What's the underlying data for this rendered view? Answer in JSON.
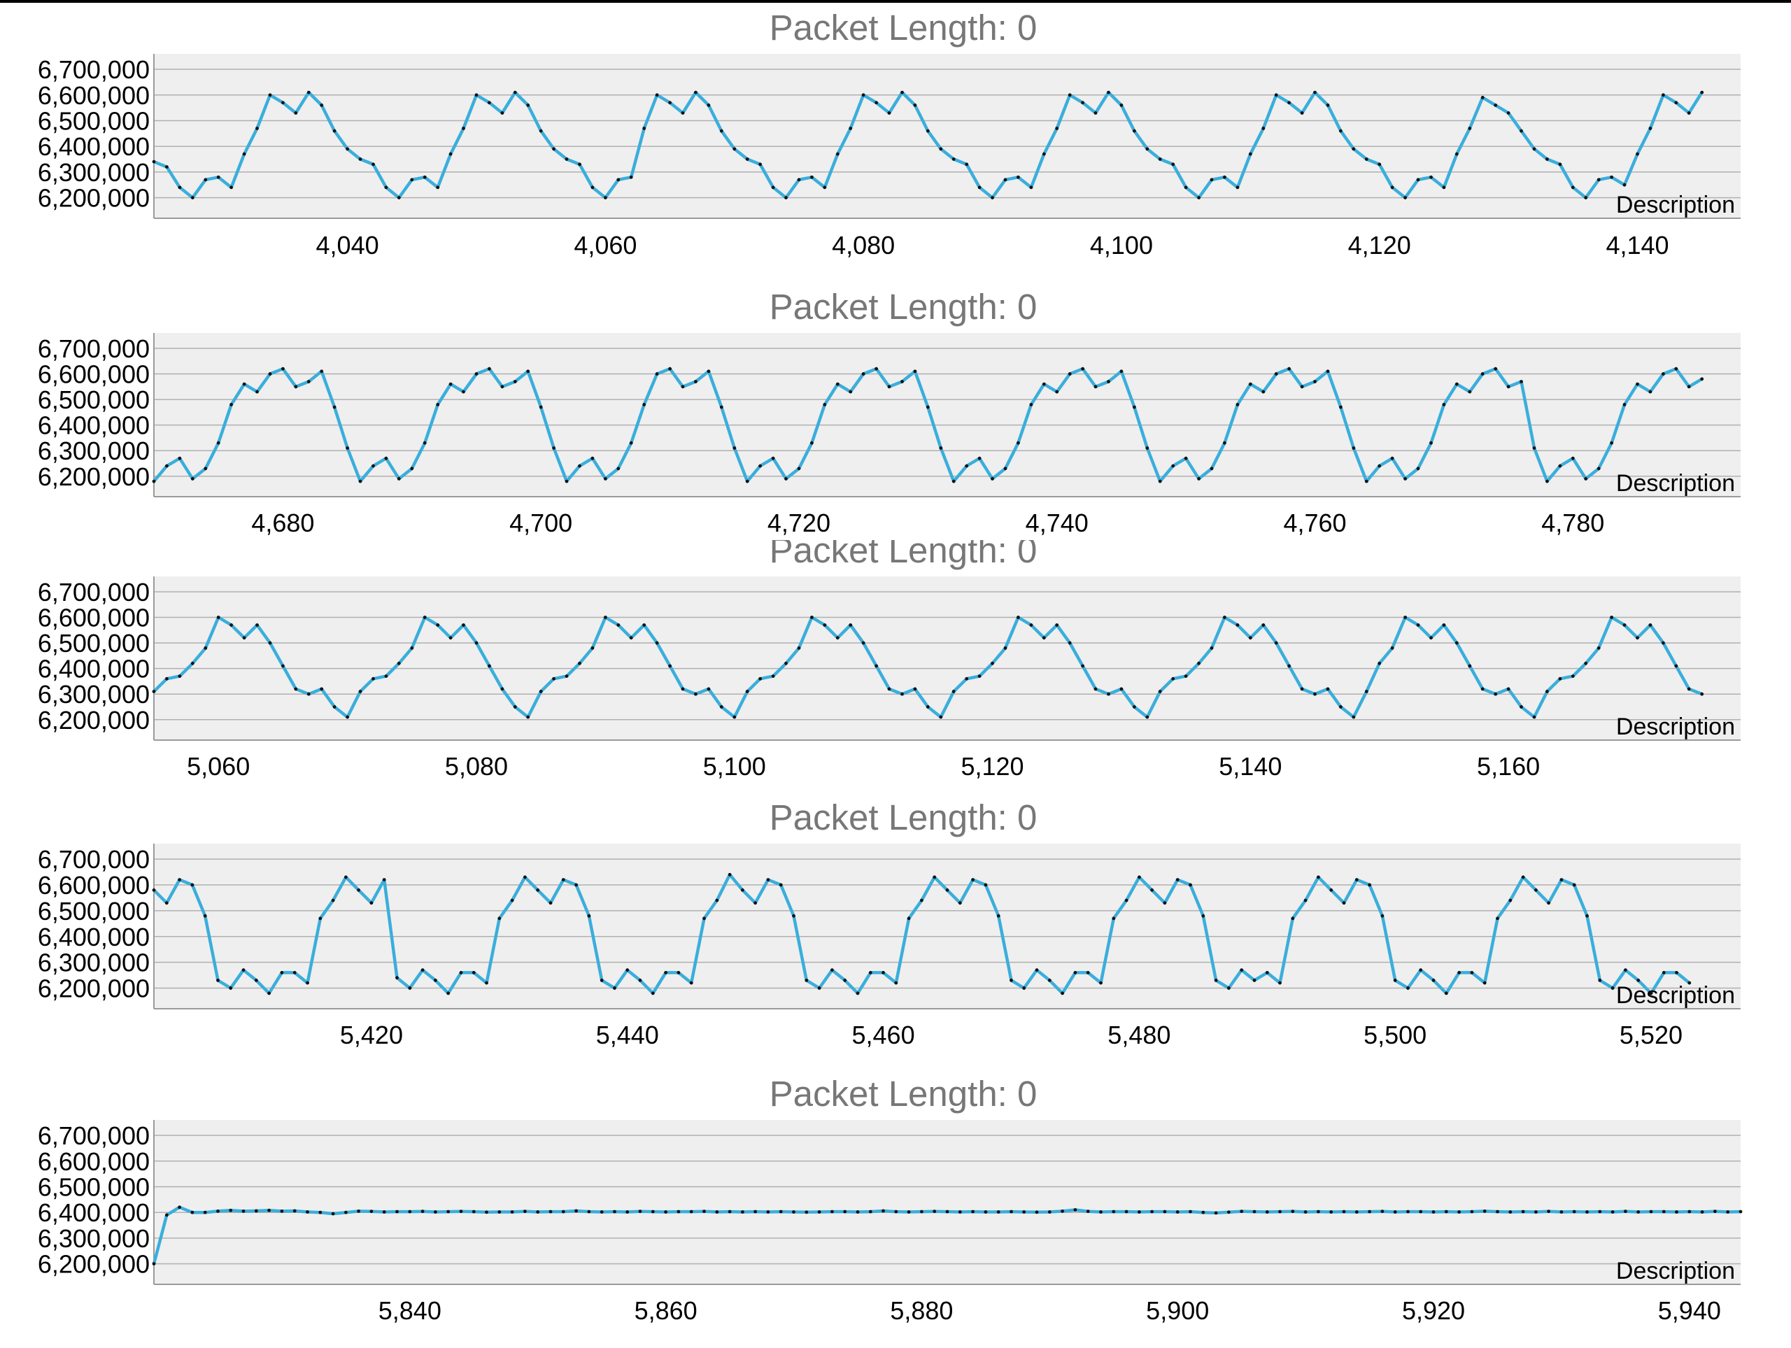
{
  "colors": {
    "line": "#3aaedc",
    "point": "#111111",
    "plot_bg": "#efefef",
    "grid": "#b0b0b0",
    "axis": "#9a9a9a",
    "title": "#777777"
  },
  "chart_data": [
    {
      "type": "line",
      "title": "Packet Length: 0",
      "description": "Description",
      "xlim": [
        4025,
        4148
      ],
      "ylim": [
        6120000,
        6760000
      ],
      "x_ticks": [
        4040,
        4060,
        4080,
        4100,
        4120,
        4140
      ],
      "x_tick_labels": [
        "4,040",
        "4,060",
        "4,080",
        "4,100",
        "4,120",
        "4,140"
      ],
      "y_ticks": [
        6200000,
        6300000,
        6400000,
        6500000,
        6600000,
        6700000
      ],
      "y_tick_labels": [
        "6,200,000",
        "6,300,000",
        "6,400,000",
        "6,500,000",
        "6,600,000",
        "6,700,000"
      ],
      "x_start": 4025,
      "x_step": 1,
      "values": [
        6340000,
        6320000,
        6240000,
        6200000,
        6270000,
        6280000,
        6240000,
        6370000,
        6470000,
        6600000,
        6570000,
        6530000,
        6610000,
        6560000,
        6460000,
        6390000,
        6350000,
        6330000,
        6240000,
        6200000,
        6270000,
        6280000,
        6240000,
        6370000,
        6470000,
        6600000,
        6570000,
        6530000,
        6610000,
        6560000,
        6460000,
        6390000,
        6350000,
        6330000,
        6240000,
        6200000,
        6270000,
        6280000,
        6470000,
        6600000,
        6570000,
        6530000,
        6610000,
        6560000,
        6460000,
        6390000,
        6350000,
        6330000,
        6240000,
        6200000,
        6270000,
        6280000,
        6240000,
        6370000,
        6470000,
        6600000,
        6570000,
        6530000,
        6610000,
        6560000,
        6460000,
        6390000,
        6350000,
        6330000,
        6240000,
        6200000,
        6270000,
        6280000,
        6240000,
        6370000,
        6470000,
        6600000,
        6570000,
        6530000,
        6610000,
        6560000,
        6460000,
        6390000,
        6350000,
        6330000,
        6240000,
        6200000,
        6270000,
        6280000,
        6240000,
        6370000,
        6470000,
        6600000,
        6570000,
        6530000,
        6610000,
        6560000,
        6460000,
        6390000,
        6350000,
        6330000,
        6240000,
        6200000,
        6270000,
        6280000,
        6240000,
        6370000,
        6470000,
        6590000,
        6560000,
        6530000,
        6460000,
        6390000,
        6350000,
        6330000,
        6240000,
        6200000,
        6270000,
        6280000,
        6250000,
        6370000,
        6470000,
        6600000,
        6570000,
        6530000,
        6610000
      ]
    },
    {
      "type": "line",
      "title": "Packet Length: 0",
      "description": "Description",
      "xlim": [
        4670,
        4793
      ],
      "ylim": [
        6120000,
        6760000
      ],
      "x_ticks": [
        4680,
        4700,
        4720,
        4740,
        4760,
        4780
      ],
      "x_tick_labels": [
        "4,680",
        "4,700",
        "4,720",
        "4,740",
        "4,760",
        "4,780"
      ],
      "y_ticks": [
        6200000,
        6300000,
        6400000,
        6500000,
        6600000,
        6700000
      ],
      "y_tick_labels": [
        "6,200,000",
        "6,300,000",
        "6,400,000",
        "6,500,000",
        "6,600,000",
        "6,700,000"
      ],
      "x_start": 4670,
      "x_step": 1,
      "values": [
        6180000,
        6240000,
        6270000,
        6190000,
        6230000,
        6330000,
        6480000,
        6560000,
        6530000,
        6600000,
        6620000,
        6550000,
        6570000,
        6610000,
        6470000,
        6310000,
        6180000,
        6240000,
        6270000,
        6190000,
        6230000,
        6330000,
        6480000,
        6560000,
        6530000,
        6600000,
        6620000,
        6550000,
        6570000,
        6610000,
        6470000,
        6310000,
        6180000,
        6240000,
        6270000,
        6190000,
        6230000,
        6330000,
        6480000,
        6600000,
        6620000,
        6550000,
        6570000,
        6610000,
        6470000,
        6310000,
        6180000,
        6240000,
        6270000,
        6190000,
        6230000,
        6330000,
        6480000,
        6560000,
        6530000,
        6600000,
        6620000,
        6550000,
        6570000,
        6610000,
        6470000,
        6310000,
        6180000,
        6240000,
        6270000,
        6190000,
        6230000,
        6330000,
        6480000,
        6560000,
        6530000,
        6600000,
        6620000,
        6550000,
        6570000,
        6610000,
        6470000,
        6310000,
        6180000,
        6240000,
        6270000,
        6190000,
        6230000,
        6330000,
        6480000,
        6560000,
        6530000,
        6600000,
        6620000,
        6550000,
        6570000,
        6610000,
        6470000,
        6310000,
        6180000,
        6240000,
        6270000,
        6190000,
        6230000,
        6330000,
        6480000,
        6560000,
        6530000,
        6600000,
        6620000,
        6550000,
        6570000,
        6310000,
        6180000,
        6240000,
        6270000,
        6190000,
        6230000,
        6330000,
        6480000,
        6560000,
        6530000,
        6600000,
        6620000,
        6550000,
        6580000
      ]
    },
    {
      "type": "line",
      "title": "Packet Length: 0",
      "description": "Description",
      "xlim": [
        5055,
        5178
      ],
      "ylim": [
        6120000,
        6760000
      ],
      "x_ticks": [
        5060,
        5080,
        5100,
        5120,
        5140,
        5160
      ],
      "x_tick_labels": [
        "5,060",
        "5,080",
        "5,100",
        "5,120",
        "5,140",
        "5,160"
      ],
      "y_ticks": [
        6200000,
        6300000,
        6400000,
        6500000,
        6600000,
        6700000
      ],
      "y_tick_labels": [
        "6,200,000",
        "6,300,000",
        "6,400,000",
        "6,500,000",
        "6,600,000",
        "6,700,000"
      ],
      "x_start": 5055,
      "x_step": 1,
      "values": [
        6310000,
        6360000,
        6370000,
        6420000,
        6480000,
        6600000,
        6570000,
        6520000,
        6570000,
        6500000,
        6410000,
        6320000,
        6300000,
        6320000,
        6250000,
        6210000,
        6310000,
        6360000,
        6370000,
        6420000,
        6480000,
        6600000,
        6570000,
        6520000,
        6570000,
        6500000,
        6410000,
        6320000,
        6250000,
        6210000,
        6310000,
        6360000,
        6370000,
        6420000,
        6480000,
        6600000,
        6570000,
        6520000,
        6570000,
        6500000,
        6410000,
        6320000,
        6300000,
        6320000,
        6250000,
        6210000,
        6310000,
        6360000,
        6370000,
        6420000,
        6480000,
        6600000,
        6570000,
        6520000,
        6570000,
        6500000,
        6410000,
        6320000,
        6300000,
        6320000,
        6250000,
        6210000,
        6310000,
        6360000,
        6370000,
        6420000,
        6480000,
        6600000,
        6570000,
        6520000,
        6570000,
        6500000,
        6410000,
        6320000,
        6300000,
        6320000,
        6250000,
        6210000,
        6310000,
        6360000,
        6370000,
        6420000,
        6480000,
        6600000,
        6570000,
        6520000,
        6570000,
        6500000,
        6410000,
        6320000,
        6300000,
        6320000,
        6250000,
        6210000,
        6310000,
        6420000,
        6480000,
        6600000,
        6570000,
        6520000,
        6570000,
        6500000,
        6410000,
        6320000,
        6300000,
        6320000,
        6250000,
        6210000,
        6310000,
        6360000,
        6370000,
        6420000,
        6480000,
        6600000,
        6570000,
        6520000,
        6570000,
        6500000,
        6410000,
        6320000,
        6300000
      ]
    },
    {
      "type": "line",
      "title": "Packet Length: 0",
      "description": "Description",
      "xlim": [
        5403,
        5527
      ],
      "ylim": [
        6120000,
        6760000
      ],
      "x_ticks": [
        5420,
        5440,
        5460,
        5480,
        5500,
        5520
      ],
      "x_tick_labels": [
        "5,420",
        "5,440",
        "5,460",
        "5,480",
        "5,500",
        "5,520"
      ],
      "y_ticks": [
        6200000,
        6300000,
        6400000,
        6500000,
        6600000,
        6700000
      ],
      "y_tick_labels": [
        "6,200,000",
        "6,300,000",
        "6,400,000",
        "6,500,000",
        "6,600,000",
        "6,700,000"
      ],
      "x_start": 5403,
      "x_step": 1,
      "values": [
        6580000,
        6530000,
        6620000,
        6600000,
        6480000,
        6230000,
        6200000,
        6270000,
        6230000,
        6180000,
        6260000,
        6260000,
        6220000,
        6470000,
        6540000,
        6630000,
        6580000,
        6530000,
        6620000,
        6240000,
        6200000,
        6270000,
        6230000,
        6180000,
        6260000,
        6260000,
        6220000,
        6470000,
        6540000,
        6630000,
        6580000,
        6530000,
        6620000,
        6600000,
        6480000,
        6230000,
        6200000,
        6270000,
        6230000,
        6180000,
        6260000,
        6260000,
        6220000,
        6470000,
        6540000,
        6640000,
        6580000,
        6530000,
        6620000,
        6600000,
        6480000,
        6230000,
        6200000,
        6270000,
        6230000,
        6180000,
        6260000,
        6260000,
        6220000,
        6470000,
        6540000,
        6630000,
        6580000,
        6530000,
        6620000,
        6600000,
        6480000,
        6230000,
        6200000,
        6270000,
        6230000,
        6180000,
        6260000,
        6260000,
        6220000,
        6470000,
        6540000,
        6630000,
        6580000,
        6530000,
        6620000,
        6600000,
        6480000,
        6230000,
        6200000,
        6270000,
        6230000,
        6260000,
        6220000,
        6470000,
        6540000,
        6630000,
        6580000,
        6530000,
        6620000,
        6600000,
        6480000,
        6230000,
        6200000,
        6270000,
        6230000,
        6180000,
        6260000,
        6260000,
        6220000,
        6470000,
        6540000,
        6630000,
        6580000,
        6530000,
        6620000,
        6600000,
        6480000,
        6230000,
        6200000,
        6270000,
        6230000,
        6180000,
        6260000,
        6260000,
        6220000
      ]
    },
    {
      "type": "line",
      "title": "Packet Length: 0",
      "description": "Description",
      "xlim": [
        5820,
        5944
      ],
      "ylim": [
        6120000,
        6760000
      ],
      "x_ticks": [
        5840,
        5860,
        5880,
        5900,
        5920,
        5940
      ],
      "x_tick_labels": [
        "5,840",
        "5,860",
        "5,880",
        "5,900",
        "5,920",
        "5,940"
      ],
      "y_ticks": [
        6200000,
        6300000,
        6400000,
        6500000,
        6600000,
        6700000
      ],
      "y_tick_labels": [
        "6,200,000",
        "6,300,000",
        "6,400,000",
        "6,500,000",
        "6,600,000",
        "6,700,000"
      ],
      "x_start": 5820,
      "x_step": 1,
      "values": [
        6200000,
        6390000,
        6420000,
        6400000,
        6400000,
        6405000,
        6408000,
        6405000,
        6406000,
        6408000,
        6405000,
        6406000,
        6402000,
        6400000,
        6395000,
        6400000,
        6405000,
        6404000,
        6402000,
        6403000,
        6403000,
        6404000,
        6402000,
        6403000,
        6404000,
        6403000,
        6401000,
        6402000,
        6402000,
        6404000,
        6402000,
        6403000,
        6403000,
        6406000,
        6403000,
        6402000,
        6403000,
        6402000,
        6404000,
        6403000,
        6402000,
        6403000,
        6403000,
        6404000,
        6402000,
        6403000,
        6402000,
        6403000,
        6402000,
        6403000,
        6402000,
        6401000,
        6402000,
        6403000,
        6403000,
        6402000,
        6403000,
        6406000,
        6403000,
        6402000,
        6403000,
        6404000,
        6403000,
        6402000,
        6403000,
        6402000,
        6402000,
        6403000,
        6402000,
        6401000,
        6402000,
        6405000,
        6410000,
        6404000,
        6402000,
        6403000,
        6403000,
        6402000,
        6403000,
        6403000,
        6402000,
        6403000,
        6400000,
        6398000,
        6401000,
        6404000,
        6403000,
        6402000,
        6403000,
        6404000,
        6402000,
        6403000,
        6402000,
        6403000,
        6402000,
        6403000,
        6404000,
        6402000,
        6403000,
        6403000,
        6402000,
        6403000,
        6402000,
        6403000,
        6405000,
        6403000,
        6402000,
        6403000,
        6402000,
        6404000,
        6402000,
        6403000,
        6402000,
        6403000,
        6402000,
        6404000,
        6402000,
        6403000,
        6403000,
        6402000,
        6403000,
        6402000,
        6404000,
        6402000,
        6403000
      ]
    }
  ]
}
